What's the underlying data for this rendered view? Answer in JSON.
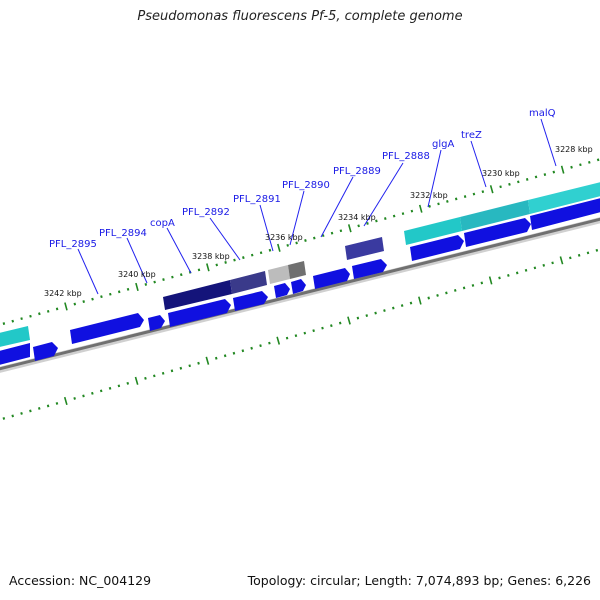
{
  "title": "Pseudomonas fluorescens Pf-5, complete genome",
  "footer": {
    "accession": "Accession: NC_004129",
    "summary": "Topology: circular; Length: 7,074,893 bp; Genes: 6,226"
  },
  "genes": [
    {
      "name": "PFL_2895"
    },
    {
      "name": "PFL_2894"
    },
    {
      "name": "copA"
    },
    {
      "name": "PFL_2892"
    },
    {
      "name": "PFL_2891"
    },
    {
      "name": "PFL_2890"
    },
    {
      "name": "PFL_2889"
    },
    {
      "name": "PFL_2888"
    },
    {
      "name": "glgA"
    },
    {
      "name": "treZ"
    },
    {
      "name": "malQ"
    }
  ],
  "scale_labels": [
    "3242 kbp",
    "3240 kbp",
    "3238 kbp",
    "3236 kbp",
    "3234 kbp",
    "3232 kbp",
    "3230 kbp",
    "3228 kbp"
  ],
  "colors": {
    "cds": "#1010e0",
    "backbone": "#888888",
    "ticks": "#228822",
    "cog_cyan": "#22c8c8",
    "cog_navy": "#14147a",
    "cog_gray": "#999999",
    "cog_steel": "#4466aa"
  }
}
